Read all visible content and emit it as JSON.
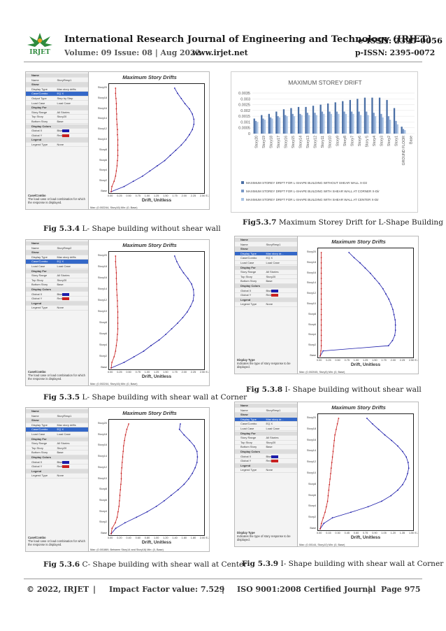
{
  "header": {
    "journal_title": "International Research Journal of Engineering and Technology (IRJET)",
    "e_issn": "e-ISSN: 2395-0056",
    "volume": "Volume: 09 Issue: 08 | Aug 2022",
    "website": "www.irjet.net",
    "p_issn": "p-ISSN: 2395-0072",
    "logo_text": "IRJET"
  },
  "colors": {
    "accent_blue": "#2a2aa8",
    "accent_red": "#c8242c",
    "bar1": "#4a6fa5",
    "bar2": "#7a99c8",
    "bar3": "#a9c3e4"
  },
  "panels": [
    {
      "id": "l-no-wall",
      "caption_label": "Fig 5.3.4",
      "caption_text": " L- Shape building without shear wall",
      "title": "Maximum Story Drifts",
      "xlabel": "Drift, Unitless",
      "grid": [
        {
          "k": "Name",
          "v": "",
          "hdr": true
        },
        {
          "k": "Name",
          "v": "StoryResp1"
        },
        {
          "k": "Show",
          "v": "",
          "hdr": true
        },
        {
          "k": "Display Type",
          "v": "Max story drifts"
        },
        {
          "k": "Case/Combo",
          "v": "EQ X",
          "sel": true
        },
        {
          "k": "Output Type",
          "v": "Step by Step"
        },
        {
          "k": "Load Case",
          "v": "Load Case"
        },
        {
          "k": "Display For",
          "v": "",
          "hdr": true
        },
        {
          "k": "Story Range",
          "v": "All Stories"
        },
        {
          "k": "Top Story",
          "v": "Story20"
        },
        {
          "k": "Bottom Story",
          "v": "Base"
        },
        {
          "k": "Display Colors",
          "v": "",
          "hdr": true
        },
        {
          "k": "Global X",
          "v": "Blue",
          "sw": "#1c1caa"
        },
        {
          "k": "Global Y",
          "v": "Red",
          "sw": "#c82020"
        },
        {
          "k": "Legend",
          "v": "",
          "hdr": true
        },
        {
          "k": "Legend Type",
          "v": "None"
        }
      ],
      "case_title": "Case/Combo",
      "case_text": "The load case or load combination for which the response is displayed.",
      "status": "Max: (0.002244, Story16)   Min: (0, Base)",
      "x_ticks": [
        "0.00",
        "0.25",
        "0.50",
        "0.75",
        "1.00",
        "1.25",
        "1.50",
        "1.75",
        "2.00",
        "2.25",
        "2.50 E-3"
      ],
      "y_ticks": [
        "Story20",
        "Story18",
        "Story16",
        "Story14",
        "Story12",
        "Story10",
        "Story8",
        "Story6",
        "Story4",
        "Story2",
        "Base"
      ],
      "chart_data": {
        "type": "line",
        "xlim": [
          0,
          2.5
        ],
        "series": [
          {
            "values": [
              0,
              0.35,
              0.6,
              0.85,
              1.05,
              1.25,
              1.45,
              1.6,
              1.75,
              1.9,
              2.02,
              2.12,
              2.2,
              2.24,
              2.24,
              2.2,
              2.12,
              2.0,
              1.9,
              1.8,
              1.72
            ]
          },
          {
            "values": [
              0,
              0.02,
              0.08,
              0.12,
              0.14,
              0.16,
              0.17,
              0.18,
              0.18,
              0.18,
              0.18,
              0.17,
              0.17,
              0.16,
              0.15,
              0.15,
              0.14,
              0.14,
              0.13,
              0.12,
              0.12
            ]
          }
        ]
      }
    },
    {
      "id": "l-corner",
      "caption_label": "Fig 5.3.5",
      "caption_text": " L- Shape building with shear wall at Corner",
      "title": "Maximum Story Drifts",
      "xlabel": "Drift, Unitless",
      "grid": [
        {
          "k": "Name",
          "v": "",
          "hdr": true
        },
        {
          "k": "Name",
          "v": "StoryResp2"
        },
        {
          "k": "Show",
          "v": "",
          "hdr": true
        },
        {
          "k": "Display Type",
          "v": "Max story drifts"
        },
        {
          "k": "Case/Combo",
          "v": "EQ X",
          "sel": true
        },
        {
          "k": "Load Case",
          "v": "Load Case"
        },
        {
          "k": "Display For",
          "v": "",
          "hdr": true
        },
        {
          "k": "Story Range",
          "v": "All Stories"
        },
        {
          "k": "Top Story",
          "v": "Story20"
        },
        {
          "k": "Bottom Story",
          "v": "Base"
        },
        {
          "k": "Display Colors",
          "v": "",
          "hdr": true
        },
        {
          "k": "Global X",
          "v": "Blue",
          "sw": "#1c1caa"
        },
        {
          "k": "Global Y",
          "v": "Red",
          "sw": "#c82020"
        },
        {
          "k": "Legend",
          "v": "",
          "hdr": true
        },
        {
          "k": "Legend Type",
          "v": "None"
        }
      ],
      "case_title": "Case/Combo",
      "case_text": "The load case or load combination for which the response is displayed.",
      "status": "Max: (0.002244, Story16)   Min: (0, Base)",
      "x_ticks": [
        "0.00",
        "0.25",
        "0.50",
        "0.75",
        "1.00",
        "1.25",
        "1.50",
        "1.75",
        "2.00",
        "2.25",
        "2.50 E-3"
      ],
      "y_ticks": [
        "Story20",
        "Story18",
        "Story16",
        "Story14",
        "Story12",
        "Story10",
        "Story8",
        "Story6",
        "Story4",
        "Story2",
        "Base"
      ],
      "chart_data": {
        "type": "line",
        "xlim": [
          0,
          2.5
        ],
        "series": [
          {
            "values": [
              0,
              0.35,
              0.62,
              0.88,
              1.08,
              1.3,
              1.48,
              1.64,
              1.8,
              1.94,
              2.06,
              2.15,
              2.22,
              2.24,
              2.23,
              2.18,
              2.08,
              1.96,
              1.86,
              1.78,
              1.72
            ]
          },
          {
            "values": [
              0,
              0.02,
              0.08,
              0.12,
              0.14,
              0.16,
              0.17,
              0.18,
              0.18,
              0.18,
              0.18,
              0.17,
              0.17,
              0.16,
              0.15,
              0.15,
              0.14,
              0.14,
              0.13,
              0.12,
              0.12
            ]
          }
        ]
      }
    },
    {
      "id": "c-center",
      "caption_label": "Fig 5.3.6",
      "caption_text": " C- Shape building with shear wall at Center",
      "title": "Maximum Story Drifts",
      "xlabel": "Drift, Unitless",
      "grid": [
        {
          "k": "Name",
          "v": "",
          "hdr": true
        },
        {
          "k": "Name",
          "v": "StoryResp1"
        },
        {
          "k": "Show",
          "v": "",
          "hdr": true
        },
        {
          "k": "Display Type",
          "v": "Max story drifts"
        },
        {
          "k": "Case/Combo",
          "v": "EQ X",
          "sel": true
        },
        {
          "k": "Load Case",
          "v": "Load Case"
        },
        {
          "k": "Display For",
          "v": "",
          "hdr": true
        },
        {
          "k": "Story Range",
          "v": "All Stories"
        },
        {
          "k": "Top Story",
          "v": "Story20"
        },
        {
          "k": "Bottom Story",
          "v": "Base"
        },
        {
          "k": "Display Colors",
          "v": "",
          "hdr": true
        },
        {
          "k": "Global X",
          "v": "Blue",
          "sw": "#1c1caa"
        },
        {
          "k": "Global Y",
          "v": "Red",
          "sw": "#c82020"
        },
        {
          "k": "Legend",
          "v": "",
          "hdr": true
        },
        {
          "k": "Legend Type",
          "v": "None"
        }
      ],
      "case_title": "Case/Combo",
      "case_text": "The load case or load combination for which the response is displayed.",
      "status": "Max: (0.001869, Between Story14 and Story16)   Min: (0, Base)",
      "x_ticks": [
        "0.00",
        "0.20",
        "0.40",
        "0.60",
        "0.80",
        "1.00",
        "1.20",
        "1.40",
        "1.60",
        "1.80",
        "2.00 E-3"
      ],
      "y_ticks": [
        "Story20",
        "Story18",
        "Story16",
        "Story14",
        "Story12",
        "Story10",
        "Story8",
        "Story6",
        "Story4",
        "Story2",
        "Base"
      ],
      "chart_data": {
        "type": "line",
        "xlim": [
          0,
          2.0
        ],
        "series": [
          {
            "values": [
              0,
              0.1,
              0.3,
              0.55,
              0.78,
              0.98,
              1.15,
              1.3,
              1.45,
              1.58,
              1.68,
              1.76,
              1.82,
              1.86,
              1.87,
              1.86,
              1.8,
              1.7,
              1.58,
              1.48,
              1.5
            ]
          },
          {
            "values": [
              0,
              0.02,
              0.09,
              0.13,
              0.15,
              0.17,
              0.18,
              0.19,
              0.2,
              0.21,
              0.22,
              0.22,
              0.23,
              0.24,
              0.25,
              0.26,
              0.27,
              0.29,
              0.31,
              0.34,
              0.38
            ]
          }
        ]
      }
    },
    {
      "id": "i-no-wall",
      "caption_label": "Fig 5.3.8",
      "caption_text": " I- Shape building without shear wall",
      "title": "Maximum Story Drifts",
      "xlabel": "Drift, Unitless",
      "grid": [
        {
          "k": "Name",
          "v": "",
          "hdr": true
        },
        {
          "k": "Name",
          "v": "StoryResp1"
        },
        {
          "k": "Show",
          "v": "",
          "hdr": true
        },
        {
          "k": "Display Type",
          "v": "Max story dr...",
          "sel": true
        },
        {
          "k": "Case/Combo",
          "v": "EQ X"
        },
        {
          "k": "Load Case",
          "v": "Load Case"
        },
        {
          "k": "Display For",
          "v": "",
          "hdr": true
        },
        {
          "k": "Story Range",
          "v": "All Stories"
        },
        {
          "k": "Top Story",
          "v": "Story20"
        },
        {
          "k": "Bottom Story",
          "v": "Base"
        },
        {
          "k": "Display Colors",
          "v": "",
          "hdr": true
        },
        {
          "k": "Global X",
          "v": "Blue",
          "sw": "#1c1caa"
        },
        {
          "k": "Global Y",
          "v": "Red",
          "sw": "#c82020"
        },
        {
          "k": "Legend",
          "v": "",
          "hdr": true
        },
        {
          "k": "Legend Type",
          "v": "None"
        }
      ],
      "case_title": "Display Type",
      "case_text": "Indicates the type of story response to be displayed.",
      "status": "Max: (0.002045, Story5)   Min: (0, Base)",
      "x_ticks": [
        "0.00",
        "0.25",
        "0.50",
        "0.75",
        "1.00",
        "1.25",
        "1.50",
        "1.75",
        "2.00",
        "2.25",
        "2.50 E-3"
      ],
      "y_ticks": [
        "Story20",
        "Story18",
        "Story16",
        "Story14",
        "Story12",
        "Story10",
        "Story8",
        "Story6",
        "Story4",
        "Story2",
        "Base"
      ],
      "chart_data": {
        "type": "line",
        "xlim": [
          0,
          2.5
        ],
        "series": [
          {
            "values": [
              0,
              0.08,
              1.85,
              1.96,
              2.02,
              2.04,
              2.04,
              2.03,
              2.0,
              1.97,
              1.92,
              1.86,
              1.78,
              1.7,
              1.6,
              1.48,
              1.36,
              1.22,
              1.08,
              0.92,
              0.78
            ]
          },
          {
            "values": [
              0,
              0.02,
              0.03,
              0.03,
              0.03,
              0.03,
              0.03,
              0.03,
              0.03,
              0.03,
              0.03,
              0.03,
              0.03,
              0.03,
              0.03,
              0.03,
              0.03,
              0.03,
              0.03,
              0.03,
              0.03
            ]
          }
        ]
      }
    },
    {
      "id": "i-corner",
      "caption_label": "Fig 5.3.9",
      "caption_text": " I- Shape building with shear wall at Corner",
      "title": "Maximum Story Drifts",
      "xlabel": "Drift, Unitless",
      "grid": [
        {
          "k": "Name",
          "v": "",
          "hdr": true
        },
        {
          "k": "Name",
          "v": "StoryResp1"
        },
        {
          "k": "Show",
          "v": "",
          "hdr": true
        },
        {
          "k": "Display Type",
          "v": "Max story dr...",
          "sel": true
        },
        {
          "k": "Case/Combo",
          "v": "EQ X"
        },
        {
          "k": "Load Case",
          "v": "Load Case"
        },
        {
          "k": "Display For",
          "v": "",
          "hdr": true
        },
        {
          "k": "Story Range",
          "v": "All Stories"
        },
        {
          "k": "Top Story",
          "v": "Story20"
        },
        {
          "k": "Bottom Story",
          "v": "Base"
        },
        {
          "k": "Display Colors",
          "v": "",
          "hdr": true
        },
        {
          "k": "Global X",
          "v": "Blue",
          "sw": "#1c1caa"
        },
        {
          "k": "Global Y",
          "v": "Red",
          "sw": "#c82020"
        },
        {
          "k": "Legend",
          "v": "",
          "hdr": true
        },
        {
          "k": "Legend Type",
          "v": "None"
        }
      ],
      "case_title": "Display Type",
      "case_text": "Indicates the type of story response to be displayed.",
      "status": "Max: (0.00144, Story10)   Min: (0, Base)",
      "x_ticks": [
        "0.00",
        "0.15",
        "0.30",
        "0.45",
        "0.60",
        "0.75",
        "0.90",
        "1.05",
        "1.20",
        "1.35",
        "1.50 E-3"
      ],
      "y_ticks": [
        "Story20",
        "Story18",
        "Story16",
        "Story14",
        "Story12",
        "Story10",
        "Story8",
        "Story6",
        "Story4",
        "Story2",
        "Base"
      ],
      "chart_data": {
        "type": "line",
        "xlim": [
          0,
          1.5
        ],
        "series": [
          {
            "values": [
              0,
              0.06,
              0.2,
              0.5,
              0.78,
              1.0,
              1.15,
              1.26,
              1.34,
              1.39,
              1.42,
              1.44,
              1.43,
              1.4,
              1.34,
              1.26,
              1.16,
              1.05,
              0.95,
              0.85,
              0.76
            ]
          },
          {
            "values": [
              0,
              0.02,
              0.05,
              0.08,
              0.1,
              0.12,
              0.13,
              0.14,
              0.15,
              0.16,
              0.17,
              0.18,
              0.19,
              0.2,
              0.21,
              0.22,
              0.23,
              0.24,
              0.26,
              0.28,
              0.3
            ]
          }
        ]
      }
    }
  ],
  "bar_chart": {
    "caption_label": "Fig5.3.7",
    "caption_text": " Maximum Storey Drift for L-Shape Building",
    "chart_data": {
      "type": "bar",
      "title": "MAXIMUM STOREY DRIFT",
      "ylim": [
        0,
        0.0035
      ],
      "y_ticks": [
        "0.0035",
        "0.003",
        "0.0025",
        "0.002",
        "0.0015",
        "0.001",
        "0.0005",
        "0"
      ],
      "categories": [
        "Story20",
        "Story19",
        "Story18",
        "Story17",
        "Story16",
        "Story15",
        "Story14",
        "Story13",
        "Story12",
        "Story11",
        "Story10",
        "Story9",
        "Story8",
        "Story7",
        "Story6",
        "Story 5",
        "Story4",
        "Story3",
        "Story2",
        "Story1",
        "GROUND FLOOR",
        "Base"
      ],
      "series": [
        {
          "name": "MAXIMUM STOREY DRIFT FOR L-SHAPE BUILDING WITHOUT SHEAR WALL X-Dir",
          "values": [
            0.0013,
            0.0016,
            0.0017,
            0.0019,
            0.0021,
            0.0022,
            0.0023,
            0.0023,
            0.0024,
            0.0025,
            0.0026,
            0.0027,
            0.0028,
            0.0029,
            0.003,
            0.0031,
            0.0031,
            0.0031,
            0.0029,
            0.0022,
            0.0006,
            0
          ]
        },
        {
          "name": "MAXIMUM STOREY DRIFT FOR L-SHAPE BUILDING WITH SHEAR WALL AT CORNER X-Dir",
          "values": [
            0.0011,
            0.0013,
            0.0014,
            0.0015,
            0.0016,
            0.0017,
            0.0017,
            0.0018,
            0.0018,
            0.0019,
            0.0019,
            0.0019,
            0.0019,
            0.0019,
            0.0019,
            0.0019,
            0.0018,
            0.0017,
            0.0015,
            0.0011,
            0.0004,
            0
          ]
        },
        {
          "name": "MAXIMUM STOREY DRIFT FOR L-SHAPE BUILDING WITH SHEAR WALL AT CENTER X-Dir",
          "values": [
            0.001,
            0.0012,
            0.0013,
            0.0014,
            0.0015,
            0.0015,
            0.0016,
            0.0016,
            0.0016,
            0.0017,
            0.0017,
            0.0017,
            0.0017,
            0.0017,
            0.0016,
            0.0016,
            0.0015,
            0.0014,
            0.0012,
            0.0008,
            0.0003,
            0
          ]
        }
      ]
    }
  },
  "footer": {
    "copyright": "© 2022, IRJET",
    "impact": "Impact Factor value: 7.529",
    "iso": "ISO 9001:2008 Certified Journal",
    "page": "Page 975",
    "sep": "|"
  }
}
